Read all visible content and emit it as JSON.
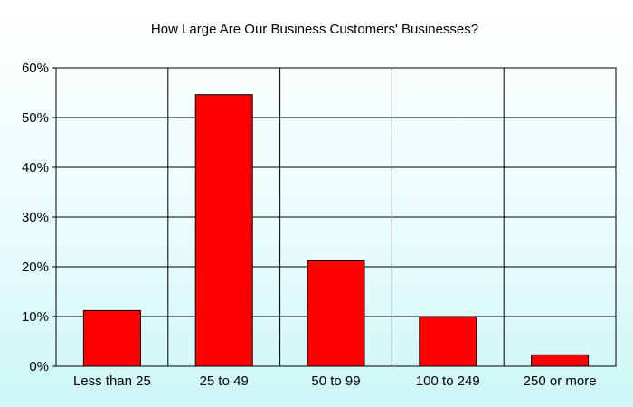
{
  "chart_data": {
    "type": "bar",
    "title": "How Large Are Our Business Customers' Businesses?",
    "xlabel": "",
    "ylabel": "",
    "categories": [
      "Less than 25",
      "25 to 49",
      "50 to 99",
      "100 to 249",
      "250 or more"
    ],
    "values": [
      11.2,
      54.6,
      21.2,
      9.9,
      2.3
    ],
    "ylim": [
      0,
      60
    ],
    "yticks": [
      0,
      10,
      20,
      30,
      40,
      50,
      60
    ],
    "ytick_labels": [
      "0%",
      "10%",
      "20%",
      "30%",
      "40%",
      "50%",
      "60%"
    ],
    "grid": true,
    "legend": "none",
    "bar_color": "#ff0000",
    "grid_color": "#000000",
    "background_top": "#ffffff",
    "background_bottom": "#cdf6f6"
  }
}
